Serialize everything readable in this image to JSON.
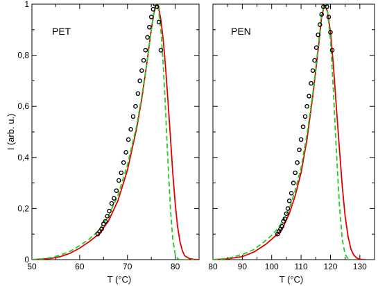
{
  "chart_data": [
    {
      "type": "line",
      "label": "PET",
      "ylabel": "I (arb. u.)",
      "xlabel": "T (°C)",
      "xlim": [
        50,
        85
      ],
      "ylim": [
        0,
        1
      ],
      "xticks": [
        50,
        60,
        70,
        80
      ],
      "yticks": [
        0,
        0.2,
        0.4,
        0.6,
        0.8,
        1
      ],
      "ytick_labels": [
        "0",
        "0,2",
        "0,4",
        "0,6",
        "0,8",
        "1"
      ],
      "grid": false,
      "series": [
        {
          "kind": "scatter",
          "marker": "open-circle",
          "color": "#000000",
          "x": [
            63.8,
            64.2,
            64.6,
            65.0,
            65.4,
            65.8,
            66.2,
            66.7,
            67.2,
            67.7,
            68.2,
            68.7,
            69.2,
            69.7,
            70.2,
            70.7,
            71.2,
            71.7,
            72.2,
            72.6,
            73.0,
            73.4,
            73.8,
            74.2,
            74.6,
            75.0,
            75.4,
            75.8,
            76.2,
            76.6,
            77.0
          ],
          "y": [
            0.1,
            0.11,
            0.12,
            0.14,
            0.15,
            0.17,
            0.19,
            0.22,
            0.24,
            0.27,
            0.31,
            0.34,
            0.38,
            0.42,
            0.47,
            0.51,
            0.56,
            0.6,
            0.65,
            0.7,
            0.74,
            0.78,
            0.82,
            0.87,
            0.91,
            0.95,
            0.98,
            1.0,
            0.99,
            0.93,
            0.82
          ]
        },
        {
          "kind": "line",
          "style": "solid",
          "color": "#e00000",
          "x": [
            50,
            52,
            54,
            56,
            58,
            60,
            62,
            64,
            66,
            68,
            70,
            72,
            73,
            74,
            75,
            75.5,
            76,
            76.5,
            77,
            77.5,
            78,
            78.5,
            79,
            79.5,
            80,
            80.5,
            81,
            81.5,
            82,
            83,
            84,
            85
          ],
          "y": [
            0.0,
            0.002,
            0.005,
            0.012,
            0.025,
            0.045,
            0.07,
            0.1,
            0.15,
            0.23,
            0.35,
            0.52,
            0.63,
            0.76,
            0.9,
            0.96,
            1.0,
            0.99,
            0.94,
            0.86,
            0.75,
            0.62,
            0.48,
            0.34,
            0.22,
            0.13,
            0.07,
            0.035,
            0.015,
            0.004,
            0.001,
            0.0
          ]
        },
        {
          "kind": "line",
          "style": "dashed",
          "color": "#22cc22",
          "x": [
            50,
            52,
            54,
            56,
            58,
            60,
            62,
            64,
            66,
            68,
            70,
            72,
            73,
            74,
            75,
            75.5,
            76,
            76.5,
            77,
            77.5,
            78,
            78.5,
            79,
            79.5,
            80,
            80.5,
            81,
            81.5,
            82,
            83,
            84
          ],
          "y": [
            0.0,
            0.003,
            0.008,
            0.018,
            0.033,
            0.055,
            0.08,
            0.115,
            0.17,
            0.25,
            0.37,
            0.53,
            0.64,
            0.76,
            0.9,
            0.96,
            1.0,
            0.98,
            0.9,
            0.76,
            0.58,
            0.38,
            0.2,
            0.08,
            0.02,
            0.004,
            0.0,
            0.0,
            0.0,
            0.0,
            0.0
          ]
        }
      ]
    },
    {
      "type": "line",
      "label": "PEN",
      "xlabel": "T (°C)",
      "xlim": [
        80,
        135
      ],
      "ylim": [
        0,
        1
      ],
      "xticks": [
        80,
        90,
        100,
        110,
        120,
        130
      ],
      "yticks": [
        0,
        0.2,
        0.4,
        0.6,
        0.8,
        1
      ],
      "grid": false,
      "series": [
        {
          "kind": "scatter",
          "marker": "open-circle",
          "color": "#000000",
          "x": [
            102.0,
            102.5,
            103.0,
            103.5,
            104.0,
            104.5,
            105.0,
            105.5,
            106.0,
            106.7,
            107.4,
            108.0,
            108.7,
            109.4,
            110.0,
            110.7,
            111.4,
            112.0,
            112.7,
            113.4,
            114.0,
            114.6,
            115.2,
            115.8,
            116.4,
            117.0,
            117.6,
            118.2,
            118.8,
            119.4,
            120.0,
            120.6
          ],
          "y": [
            0.1,
            0.11,
            0.12,
            0.13,
            0.15,
            0.16,
            0.18,
            0.2,
            0.23,
            0.26,
            0.3,
            0.34,
            0.38,
            0.43,
            0.47,
            0.52,
            0.56,
            0.6,
            0.64,
            0.69,
            0.74,
            0.78,
            0.83,
            0.88,
            0.92,
            0.96,
            0.99,
            1.0,
            0.99,
            0.95,
            0.89,
            0.82
          ]
        },
        {
          "kind": "line",
          "style": "solid",
          "color": "#e00000",
          "x": [
            80,
            85,
            90,
            94,
            98,
            100,
            102,
            104,
            106,
            108,
            110,
            112,
            114,
            116,
            117,
            118,
            119,
            120,
            121,
            122,
            123,
            124,
            125,
            126,
            127,
            128,
            129,
            130,
            131,
            132
          ],
          "y": [
            0.0,
            0.003,
            0.012,
            0.03,
            0.06,
            0.08,
            0.1,
            0.13,
            0.18,
            0.25,
            0.34,
            0.47,
            0.64,
            0.84,
            0.95,
            1.0,
            0.97,
            0.89,
            0.76,
            0.6,
            0.44,
            0.29,
            0.17,
            0.09,
            0.04,
            0.017,
            0.006,
            0.002,
            0.0,
            0.0
          ]
        },
        {
          "kind": "line",
          "style": "dashed",
          "color": "#22cc22",
          "x": [
            80,
            85,
            90,
            94,
            98,
            100,
            102,
            104,
            106,
            108,
            110,
            112,
            114,
            116,
            117,
            118,
            119,
            120,
            121,
            122,
            123,
            124,
            125,
            126,
            127,
            128
          ],
          "y": [
            0.0,
            0.005,
            0.02,
            0.04,
            0.075,
            0.095,
            0.12,
            0.155,
            0.2,
            0.27,
            0.36,
            0.49,
            0.65,
            0.85,
            0.96,
            1.0,
            0.97,
            0.86,
            0.66,
            0.43,
            0.22,
            0.08,
            0.02,
            0.003,
            0.0,
            0.0
          ]
        }
      ]
    }
  ]
}
